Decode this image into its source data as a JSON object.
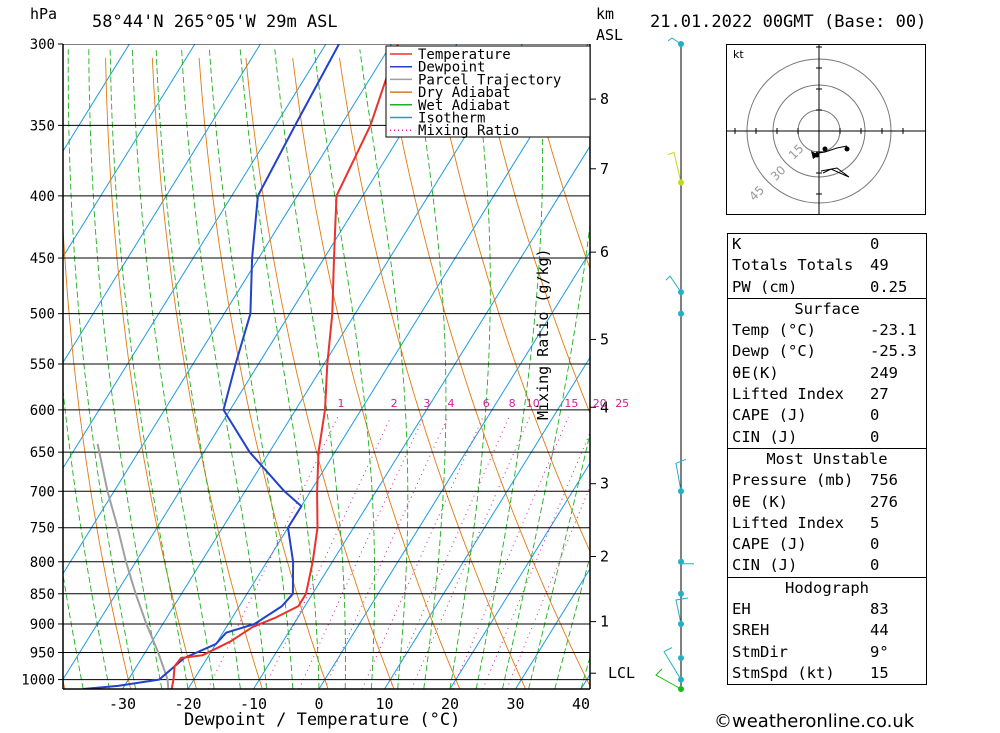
{
  "header": {
    "hpa_label": "hPa",
    "location": "58°44'N  265°05'W  29m  ASL",
    "km_label": "km",
    "asl_label": "ASL",
    "date": "21.01.2022  00GMT  (Base: 00)"
  },
  "chart_data": {
    "type": "skew-t",
    "xlabel": "Dewpoint / Temperature (°C)",
    "ylabel_right": "Mixing Ratio (g/kg)",
    "x_ticks": [
      -30,
      -20,
      -10,
      0,
      10,
      20,
      30,
      40
    ],
    "pressure_levels": [
      300,
      350,
      400,
      450,
      500,
      550,
      600,
      650,
      700,
      750,
      800,
      850,
      900,
      950,
      1000
    ],
    "km_ticks": [
      {
        "label": "8",
        "p": 333
      },
      {
        "label": "7",
        "p": 380
      },
      {
        "label": "6",
        "p": 445
      },
      {
        "label": "5",
        "p": 525
      },
      {
        "label": "4",
        "p": 597
      },
      {
        "label": "3",
        "p": 690
      },
      {
        "label": "2",
        "p": 792
      },
      {
        "label": "1",
        "p": 896
      },
      {
        "label": "LCL",
        "p": 988
      }
    ],
    "mixing_ratio_labels": [
      "1",
      "2",
      "3",
      "4",
      "6",
      "8",
      "10",
      "15",
      "20",
      "25"
    ],
    "legend": [
      {
        "name": "Temperature",
        "color": "#e8322d"
      },
      {
        "name": "Dewpoint",
        "color": "#2341c9"
      },
      {
        "name": "Parcel Trajectory",
        "color": "#a0a0a0"
      },
      {
        "name": "Dry Adiabat",
        "color": "#e07a10"
      },
      {
        "name": "Wet Adiabat",
        "color": "#1fb01f"
      },
      {
        "name": "Isotherm",
        "color": "#1e9be0"
      },
      {
        "name": "Mixing Ratio",
        "color": "#d0209c"
      }
    ],
    "temperature": [
      {
        "p": 1018,
        "t": -22.5
      },
      {
        "p": 1000,
        "t": -23.1
      },
      {
        "p": 975,
        "t": -24.2
      },
      {
        "p": 960,
        "t": -24.0
      },
      {
        "p": 955,
        "t": -21.0
      },
      {
        "p": 930,
        "t": -18.0
      },
      {
        "p": 905,
        "t": -16.0
      },
      {
        "p": 890,
        "t": -13.5
      },
      {
        "p": 870,
        "t": -11.0
      },
      {
        "p": 850,
        "t": -11.0
      },
      {
        "p": 800,
        "t": -13.0
      },
      {
        "p": 750,
        "t": -15.5
      },
      {
        "p": 700,
        "t": -19.0
      },
      {
        "p": 650,
        "t": -22.5
      },
      {
        "p": 600,
        "t": -25.5
      },
      {
        "p": 550,
        "t": -29.5
      },
      {
        "p": 500,
        "t": -33.5
      },
      {
        "p": 450,
        "t": -38.5
      },
      {
        "p": 400,
        "t": -44.0
      },
      {
        "p": 350,
        "t": -45.5
      },
      {
        "p": 300,
        "t": -49.0
      }
    ],
    "dewpoint": [
      {
        "p": 1018,
        "t": -36.0
      },
      {
        "p": 1012,
        "t": -31.0
      },
      {
        "p": 1000,
        "t": -25.3
      },
      {
        "p": 960,
        "t": -23.5
      },
      {
        "p": 935,
        "t": -20.0
      },
      {
        "p": 915,
        "t": -19.5
      },
      {
        "p": 900,
        "t": -16.0
      },
      {
        "p": 870,
        "t": -13.5
      },
      {
        "p": 850,
        "t": -13.0
      },
      {
        "p": 800,
        "t": -16.0
      },
      {
        "p": 750,
        "t": -20.0
      },
      {
        "p": 720,
        "t": -20.0
      },
      {
        "p": 700,
        "t": -24.0
      },
      {
        "p": 650,
        "t": -33.0
      },
      {
        "p": 600,
        "t": -41.0
      },
      {
        "p": 550,
        "t": -43.5
      },
      {
        "p": 500,
        "t": -46.0
      },
      {
        "p": 450,
        "t": -51.0
      },
      {
        "p": 400,
        "t": -56.0
      },
      {
        "p": 350,
        "t": -57.0
      },
      {
        "p": 300,
        "t": -58.0
      }
    ],
    "parcel": [
      {
        "p": 1018,
        "t": -23.0
      },
      {
        "p": 1000,
        "t": -24.0
      },
      {
        "p": 950,
        "t": -28.0
      },
      {
        "p": 900,
        "t": -32.5
      },
      {
        "p": 850,
        "t": -37.0
      },
      {
        "p": 800,
        "t": -41.5
      },
      {
        "p": 750,
        "t": -46.0
      },
      {
        "p": 700,
        "t": -51.0
      },
      {
        "p": 640,
        "t": -57.0
      }
    ],
    "wind_levels": [
      300,
      390,
      480,
      500,
      700,
      800,
      850,
      900,
      960,
      1000,
      1018
    ],
    "hodograph": {
      "unit": "kt",
      "rings": [
        "15",
        "30",
        "45"
      ]
    }
  },
  "indices": {
    "K": {
      "label": "K",
      "value": "0"
    },
    "TT": {
      "label": "Totals Totals",
      "value": "49"
    },
    "PW": {
      "label": "PW (cm)",
      "value": "0.25"
    }
  },
  "surface": {
    "title": "Surface",
    "temp": {
      "label": "Temp (°C)",
      "value": "-23.1"
    },
    "dewp": {
      "label": "Dewp (°C)",
      "value": "-25.3"
    },
    "thetae": {
      "label": "θE(K)",
      "value": "249"
    },
    "li": {
      "label": "Lifted Index",
      "value": "27"
    },
    "cape": {
      "label": "CAPE (J)",
      "value": "0"
    },
    "cin": {
      "label": "CIN (J)",
      "value": "0"
    }
  },
  "most_unstable": {
    "title": "Most Unstable",
    "pressure": {
      "label": "Pressure (mb)",
      "value": "756"
    },
    "thetae": {
      "label": "θE (K)",
      "value": "276"
    },
    "li": {
      "label": "Lifted Index",
      "value": "5"
    },
    "cape": {
      "label": "CAPE (J)",
      "value": "0"
    },
    "cin": {
      "label": "CIN (J)",
      "value": "0"
    }
  },
  "hodograph_panel": {
    "title": "Hodograph",
    "eh": {
      "label": "EH",
      "value": "83"
    },
    "sreh": {
      "label": "SREH",
      "value": "44"
    },
    "stmdir": {
      "label": "StmDir",
      "value": "9°"
    },
    "stmspd": {
      "label": "StmSpd (kt)",
      "value": "15"
    }
  },
  "footer": {
    "copyright": "©weatheronline.co.uk"
  }
}
